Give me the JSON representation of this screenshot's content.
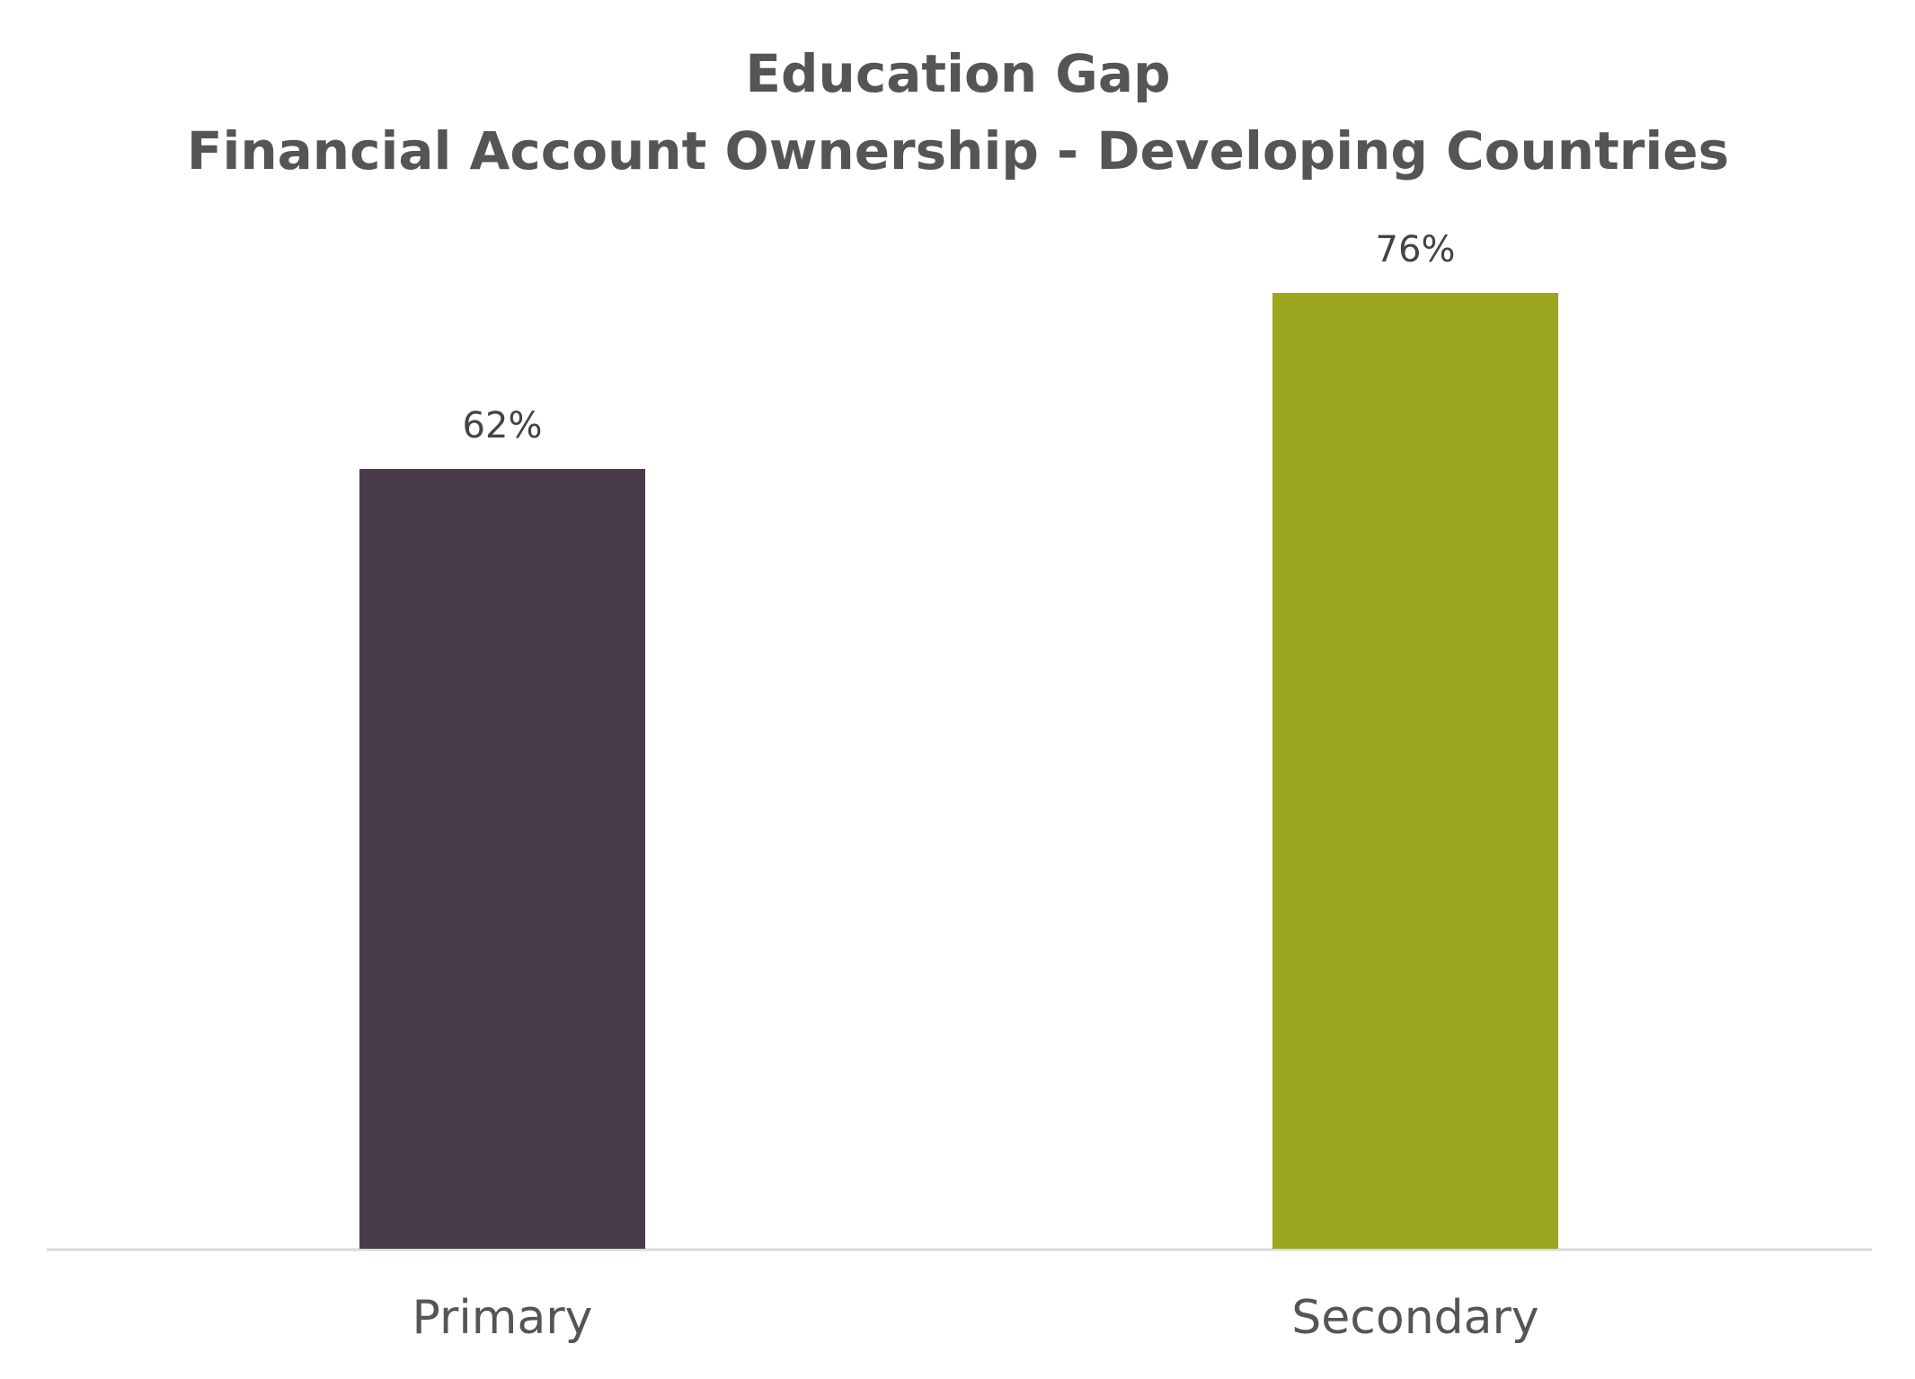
{
  "chart_data": {
    "type": "bar",
    "title": "Education Gap",
    "subtitle": "Financial Account Ownership - Developing Countries",
    "categories": [
      "Primary",
      "Secondary"
    ],
    "values": [
      62,
      76
    ],
    "value_labels": [
      "62%",
      "76%"
    ],
    "colors": [
      "#4a3b4a",
      "#9ca71f"
    ]
  }
}
